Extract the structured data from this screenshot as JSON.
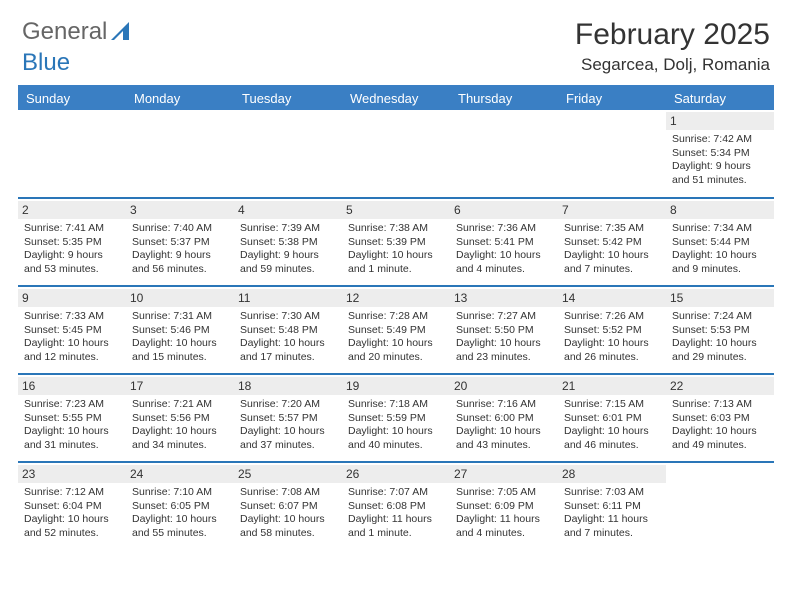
{
  "logo": {
    "word1": "General",
    "word2": "Blue"
  },
  "title": "February 2025",
  "subtitle": "Segarcea, Dolj, Romania",
  "colors": {
    "header_bg": "#3a7fc4",
    "row_divider": "#2a76b8",
    "daynum_bg": "#ededed",
    "text": "#333333"
  },
  "weekdays": [
    "Sunday",
    "Monday",
    "Tuesday",
    "Wednesday",
    "Thursday",
    "Friday",
    "Saturday"
  ],
  "weeks": [
    [
      {
        "n": "",
        "lines": []
      },
      {
        "n": "",
        "lines": []
      },
      {
        "n": "",
        "lines": []
      },
      {
        "n": "",
        "lines": []
      },
      {
        "n": "",
        "lines": []
      },
      {
        "n": "",
        "lines": []
      },
      {
        "n": "1",
        "lines": [
          "Sunrise: 7:42 AM",
          "Sunset: 5:34 PM",
          "Daylight: 9 hours and 51 minutes."
        ]
      }
    ],
    [
      {
        "n": "2",
        "lines": [
          "Sunrise: 7:41 AM",
          "Sunset: 5:35 PM",
          "Daylight: 9 hours and 53 minutes."
        ]
      },
      {
        "n": "3",
        "lines": [
          "Sunrise: 7:40 AM",
          "Sunset: 5:37 PM",
          "Daylight: 9 hours and 56 minutes."
        ]
      },
      {
        "n": "4",
        "lines": [
          "Sunrise: 7:39 AM",
          "Sunset: 5:38 PM",
          "Daylight: 9 hours and 59 minutes."
        ]
      },
      {
        "n": "5",
        "lines": [
          "Sunrise: 7:38 AM",
          "Sunset: 5:39 PM",
          "Daylight: 10 hours and 1 minute."
        ]
      },
      {
        "n": "6",
        "lines": [
          "Sunrise: 7:36 AM",
          "Sunset: 5:41 PM",
          "Daylight: 10 hours and 4 minutes."
        ]
      },
      {
        "n": "7",
        "lines": [
          "Sunrise: 7:35 AM",
          "Sunset: 5:42 PM",
          "Daylight: 10 hours and 7 minutes."
        ]
      },
      {
        "n": "8",
        "lines": [
          "Sunrise: 7:34 AM",
          "Sunset: 5:44 PM",
          "Daylight: 10 hours and 9 minutes."
        ]
      }
    ],
    [
      {
        "n": "9",
        "lines": [
          "Sunrise: 7:33 AM",
          "Sunset: 5:45 PM",
          "Daylight: 10 hours and 12 minutes."
        ]
      },
      {
        "n": "10",
        "lines": [
          "Sunrise: 7:31 AM",
          "Sunset: 5:46 PM",
          "Daylight: 10 hours and 15 minutes."
        ]
      },
      {
        "n": "11",
        "lines": [
          "Sunrise: 7:30 AM",
          "Sunset: 5:48 PM",
          "Daylight: 10 hours and 17 minutes."
        ]
      },
      {
        "n": "12",
        "lines": [
          "Sunrise: 7:28 AM",
          "Sunset: 5:49 PM",
          "Daylight: 10 hours and 20 minutes."
        ]
      },
      {
        "n": "13",
        "lines": [
          "Sunrise: 7:27 AM",
          "Sunset: 5:50 PM",
          "Daylight: 10 hours and 23 minutes."
        ]
      },
      {
        "n": "14",
        "lines": [
          "Sunrise: 7:26 AM",
          "Sunset: 5:52 PM",
          "Daylight: 10 hours and 26 minutes."
        ]
      },
      {
        "n": "15",
        "lines": [
          "Sunrise: 7:24 AM",
          "Sunset: 5:53 PM",
          "Daylight: 10 hours and 29 minutes."
        ]
      }
    ],
    [
      {
        "n": "16",
        "lines": [
          "Sunrise: 7:23 AM",
          "Sunset: 5:55 PM",
          "Daylight: 10 hours and 31 minutes."
        ]
      },
      {
        "n": "17",
        "lines": [
          "Sunrise: 7:21 AM",
          "Sunset: 5:56 PM",
          "Daylight: 10 hours and 34 minutes."
        ]
      },
      {
        "n": "18",
        "lines": [
          "Sunrise: 7:20 AM",
          "Sunset: 5:57 PM",
          "Daylight: 10 hours and 37 minutes."
        ]
      },
      {
        "n": "19",
        "lines": [
          "Sunrise: 7:18 AM",
          "Sunset: 5:59 PM",
          "Daylight: 10 hours and 40 minutes."
        ]
      },
      {
        "n": "20",
        "lines": [
          "Sunrise: 7:16 AM",
          "Sunset: 6:00 PM",
          "Daylight: 10 hours and 43 minutes."
        ]
      },
      {
        "n": "21",
        "lines": [
          "Sunrise: 7:15 AM",
          "Sunset: 6:01 PM",
          "Daylight: 10 hours and 46 minutes."
        ]
      },
      {
        "n": "22",
        "lines": [
          "Sunrise: 7:13 AM",
          "Sunset: 6:03 PM",
          "Daylight: 10 hours and 49 minutes."
        ]
      }
    ],
    [
      {
        "n": "23",
        "lines": [
          "Sunrise: 7:12 AM",
          "Sunset: 6:04 PM",
          "Daylight: 10 hours and 52 minutes."
        ]
      },
      {
        "n": "24",
        "lines": [
          "Sunrise: 7:10 AM",
          "Sunset: 6:05 PM",
          "Daylight: 10 hours and 55 minutes."
        ]
      },
      {
        "n": "25",
        "lines": [
          "Sunrise: 7:08 AM",
          "Sunset: 6:07 PM",
          "Daylight: 10 hours and 58 minutes."
        ]
      },
      {
        "n": "26",
        "lines": [
          "Sunrise: 7:07 AM",
          "Sunset: 6:08 PM",
          "Daylight: 11 hours and 1 minute."
        ]
      },
      {
        "n": "27",
        "lines": [
          "Sunrise: 7:05 AM",
          "Sunset: 6:09 PM",
          "Daylight: 11 hours and 4 minutes."
        ]
      },
      {
        "n": "28",
        "lines": [
          "Sunrise: 7:03 AM",
          "Sunset: 6:11 PM",
          "Daylight: 11 hours and 7 minutes."
        ]
      },
      {
        "n": "",
        "lines": []
      }
    ]
  ]
}
